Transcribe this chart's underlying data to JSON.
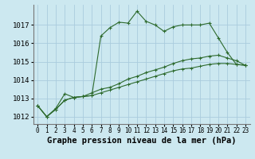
{
  "xlabel": "Graphe pression niveau de la mer (hPa)",
  "bg_color": "#cce8f0",
  "grid_color": "#aaccdd",
  "line_color": "#2d6a2d",
  "x": [
    0,
    1,
    2,
    3,
    4,
    5,
    6,
    7,
    8,
    9,
    10,
    11,
    12,
    13,
    14,
    15,
    16,
    17,
    18,
    19,
    20,
    21,
    22,
    23
  ],
  "y_series1": [
    1012.6,
    1012.0,
    1012.4,
    1012.9,
    1013.05,
    1013.1,
    1013.15,
    1016.4,
    1016.85,
    1017.15,
    1017.1,
    1017.75,
    1017.2,
    1017.0,
    1016.65,
    1016.9,
    1017.0,
    1017.0,
    1017.0,
    1017.1,
    1016.3,
    1015.5,
    1014.85,
    1014.8
  ],
  "y_series2": [
    1012.6,
    1012.0,
    1012.45,
    1013.25,
    1013.05,
    1013.1,
    1013.3,
    1013.5,
    1013.6,
    1013.8,
    1014.05,
    1014.2,
    1014.4,
    1014.55,
    1014.7,
    1014.9,
    1015.05,
    1015.15,
    1015.2,
    1015.3,
    1015.35,
    1015.2,
    1015.05,
    1014.8
  ],
  "y_series3": [
    1012.6,
    1012.0,
    1012.4,
    1012.9,
    1013.05,
    1013.1,
    1013.15,
    1013.3,
    1013.45,
    1013.6,
    1013.75,
    1013.9,
    1014.05,
    1014.2,
    1014.35,
    1014.5,
    1014.6,
    1014.65,
    1014.75,
    1014.85,
    1014.9,
    1014.9,
    1014.85,
    1014.8
  ],
  "ylim": [
    1011.6,
    1018.1
  ],
  "yticks": [
    1012,
    1013,
    1014,
    1015,
    1016,
    1017
  ],
  "ytick_labels": [
    "1012",
    "1013",
    "1014",
    "1015",
    "1016",
    "1017"
  ],
  "xtick_labels": [
    "0",
    "1",
    "2",
    "3",
    "4",
    "5",
    "6",
    "7",
    "8",
    "9",
    "10",
    "11",
    "12",
    "13",
    "14",
    "15",
    "16",
    "17",
    "18",
    "19",
    "20",
    "21",
    "22",
    "23"
  ],
  "xlabel_fontsize": 7.5,
  "ytick_fontsize": 6.5,
  "xtick_fontsize": 5.5
}
